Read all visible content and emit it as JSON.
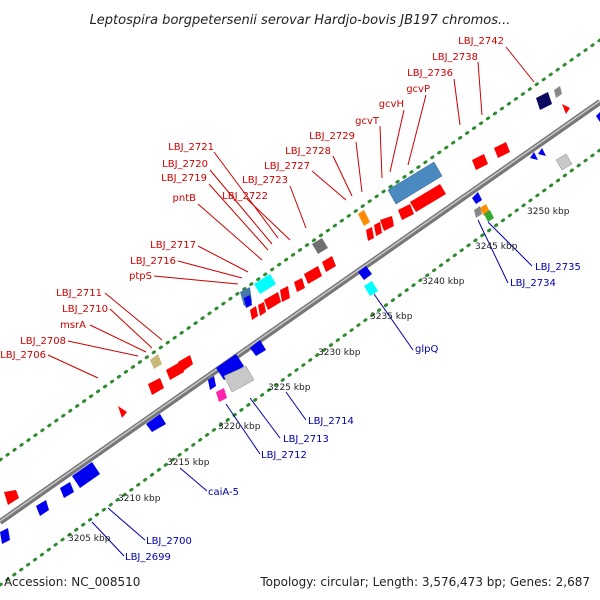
{
  "title": "Leptospira borgpetersenii serovar Hardjo-bovis JB197 chromos...",
  "footer": {
    "accession": "Accession: NC_008510",
    "summary": "Topology: circular; Length: 3,576,473 bp; Genes: 2,687"
  },
  "colors": {
    "backbone": "#8a8a8a",
    "forward_gene": "#ff0000",
    "reverse_gene": "#0000ee",
    "label_forward": "#cc0000",
    "label_reverse": "#0000aa",
    "dots": "#2e8b2e"
  },
  "ticks": [
    "3205 kbp",
    "3210 kbp",
    "3215 kbp",
    "3220 kbp",
    "3225 kbp",
    "3230 kbp",
    "3235 kbp",
    "3240 kbp",
    "3245 kbp",
    "3250 kbp"
  ],
  "red_labels": [
    "LBJ_2742",
    "LBJ_2738",
    "LBJ_2736",
    "gcvP",
    "gcvH",
    "gcvT",
    "LBJ_2729",
    "LBJ_2728",
    "LBJ_2727",
    "LBJ_2723",
    "LBJ_2721",
    "LBJ_2720",
    "LBJ_2719",
    "LBJ_2722",
    "pntB",
    "LBJ_2717",
    "LBJ_2716",
    "ptpS",
    "LBJ_2711",
    "LBJ_2710",
    "msrA",
    "LBJ_2708",
    "LBJ_2706"
  ],
  "blue_labels": [
    "LBJ_2735",
    "LBJ_2734",
    "glpQ",
    "LBJ_2714",
    "LBJ_2713",
    "LBJ_2712",
    "caiA-5",
    "LBJ_2700",
    "LBJ_2699"
  ]
}
